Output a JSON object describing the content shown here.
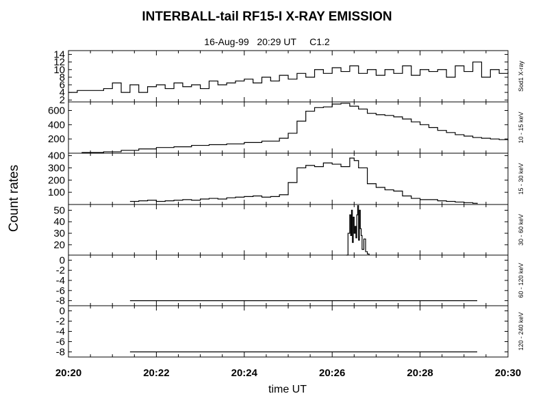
{
  "title": "INTERBALL-tail  RF15-I   X-RAY  EMISSION",
  "subtitle": "16-Aug-99   20:29 UT     C1.2",
  "chart_data": {
    "type": "line",
    "ylabel": "Count  rates",
    "xlabel": "time UT",
    "x_ticks": [
      "20:20",
      "20:22",
      "20:24",
      "20:26",
      "20:28",
      "20:30"
    ],
    "xlim_minutes": [
      0,
      10
    ],
    "panels": [
      {
        "label": "Sod1 X-ray",
        "ylim": [
          1.5,
          15
        ],
        "yticks": [
          2,
          4,
          6,
          8,
          10,
          12,
          14
        ],
        "series": [
          {
            "x": [
              0.0,
              0.2,
              0.5,
              0.8,
              1.0,
              1.2,
              1.4,
              1.6,
              1.8,
              2.0,
              2.2,
              2.4,
              2.6,
              2.8,
              3.0,
              3.2,
              3.4,
              3.6,
              3.8,
              4.0,
              4.2,
              4.4,
              4.6,
              4.8,
              5.0,
              5.2,
              5.4,
              5.6,
              5.8,
              6.0,
              6.2,
              6.4,
              6.6,
              6.8,
              7.0,
              7.2,
              7.4,
              7.6,
              7.8,
              8.0,
              8.2,
              8.4,
              8.6,
              8.8,
              9.0,
              9.2,
              9.4,
              9.6,
              9.8,
              10.0
            ],
            "y": [
              4,
              4.5,
              4.5,
              5,
              6.5,
              4,
              6,
              4,
              5.5,
              6,
              5,
              6.5,
              5.5,
              6,
              5,
              7,
              6,
              6.5,
              7,
              7.5,
              6.5,
              8,
              7,
              8.5,
              7.5,
              9,
              8,
              10,
              9,
              10.5,
              9.5,
              11,
              9,
              10,
              8.5,
              10,
              9,
              11,
              8.5,
              10,
              9.5,
              10,
              8,
              11,
              9.5,
              12,
              8,
              10,
              9,
              9.5
            ]
          }
        ]
      },
      {
        "label": "10 - 15 keV",
        "ylim": [
          0,
          720
        ],
        "yticks": [
          200,
          400,
          600
        ],
        "series": [
          {
            "x": [
              0.3,
              0.8,
              1.2,
              1.6,
              2.0,
              2.4,
              2.8,
              3.2,
              3.6,
              4.0,
              4.4,
              4.8,
              5.0,
              5.2,
              5.4,
              5.6,
              5.8,
              6.0,
              6.2,
              6.4,
              6.6,
              6.8,
              7.0,
              7.2,
              7.4,
              7.6,
              7.8,
              8.0,
              8.2,
              8.4,
              8.6,
              8.8,
              9.0,
              9.2,
              9.4,
              9.6,
              9.8,
              10.0
            ],
            "y": [
              10,
              20,
              40,
              60,
              80,
              90,
              110,
              120,
              130,
              150,
              170,
              210,
              280,
              450,
              590,
              640,
              650,
              690,
              700,
              660,
              620,
              560,
              540,
              530,
              510,
              480,
              440,
              400,
              360,
              320,
              290,
              260,
              240,
              220,
              210,
              200,
              190,
              180
            ]
          }
        ]
      },
      {
        "label": "15 - 30 keV",
        "ylim": [
          0,
          420
        ],
        "yticks": [
          100,
          200,
          300,
          400
        ],
        "series": [
          {
            "x": [
              1.4,
              1.6,
              1.8,
              2.0,
              2.2,
              2.4,
              2.6,
              2.8,
              3.0,
              3.2,
              3.4,
              3.6,
              3.8,
              4.0,
              4.2,
              4.4,
              4.6,
              4.8,
              5.0,
              5.2,
              5.4,
              5.6,
              5.8,
              6.0,
              6.2,
              6.4,
              6.5,
              6.6,
              6.8,
              7.0,
              7.2,
              7.4,
              7.6,
              7.8,
              8.0,
              8.2,
              8.4,
              8.6,
              8.8,
              9.0,
              9.2,
              9.3
            ],
            "y": [
              25,
              30,
              35,
              25,
              30,
              35,
              40,
              35,
              45,
              50,
              45,
              55,
              60,
              65,
              70,
              60,
              65,
              80,
              180,
              300,
              320,
              310,
              340,
              330,
              310,
              380,
              360,
              300,
              170,
              140,
              120,
              110,
              70,
              50,
              40,
              40,
              30,
              25,
              20,
              15,
              10,
              5
            ]
          }
        ]
      },
      {
        "label": "30 - 60 keV",
        "ylim": [
          11,
          55
        ],
        "yticks": [
          20,
          30,
          40,
          50
        ],
        "series": [
          {
            "x": [
              6.32,
              6.36,
              6.4,
              6.42,
              6.44,
              6.46,
              6.48,
              6.5,
              6.52,
              6.54,
              6.56,
              6.58,
              6.6,
              6.62,
              6.64,
              6.66,
              6.68,
              6.72,
              6.76,
              6.8,
              6.84
            ],
            "y": [
              11,
              30,
              46,
              28,
              50,
              22,
              44,
              30,
              36,
              26,
              46,
              54,
              24,
              50,
              34,
              28,
              16,
              25,
              14,
              12,
              11
            ]
          }
        ]
      },
      {
        "label": "60 - 120 keV",
        "ylim": [
          -9,
          1
        ],
        "yticks": [
          0,
          -2,
          -4,
          -6,
          -8
        ],
        "series": [
          {
            "x": [
              1.4,
              9.3
            ],
            "y": [
              -8,
              -8
            ]
          }
        ]
      },
      {
        "label": "120 - 240 keV",
        "ylim": [
          -9,
          1
        ],
        "yticks": [
          0,
          -2,
          -4,
          -6,
          -8
        ],
        "series": [
          {
            "x": [
              1.4,
              9.3
            ],
            "y": [
              -8,
              -8
            ]
          }
        ]
      }
    ]
  }
}
